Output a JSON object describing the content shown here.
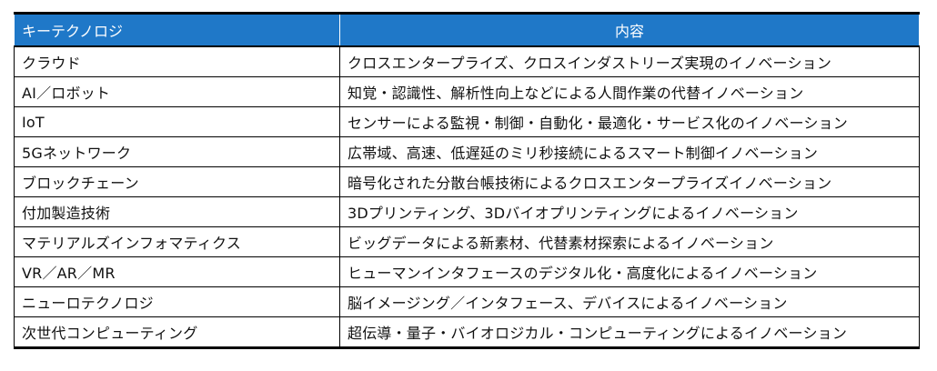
{
  "table": {
    "headers": [
      "キーテクノロジ",
      "内容"
    ],
    "rows": [
      [
        "クラウド",
        "クロスエンタープライズ、クロスインダストリーズ実現のイノベーション"
      ],
      [
        "AI／ロボット",
        "知覚・認識性、解析性向上などによる人間作業の代替イノベーション"
      ],
      [
        "IoT",
        "センサーによる監視・制御・自動化・最適化・サービス化のイノベーション"
      ],
      [
        "5Gネットワーク",
        "広帯域、高速、低遅延のミリ秒接続によるスマート制御イノベーション"
      ],
      [
        "ブロックチェーン",
        "暗号化された分散台帳技術によるクロスエンタープライズイノベーション"
      ],
      [
        "付加製造技術",
        "3Dプリンティング、3Dバイオプリンティングによるイノベーション"
      ],
      [
        "マテリアルズインフォマティクス",
        "ビッグデータによる新素材、代替素材探索によるイノベーション"
      ],
      [
        "VR／AR／MR",
        "ヒューマンインタフェースのデジタル化・高度化によるイノベーション"
      ],
      [
        "ニューロテクノロジ",
        "脳イメージング／インタフェース、デバイスによるイノベーション"
      ],
      [
        "次世代コンピューティング",
        "超伝導・量子・バイオロジカル・コンピューティングによるイノベーション"
      ]
    ]
  },
  "colors": {
    "header_bg": "#1f78c8",
    "header_text": "#ffffff",
    "border": "#000000"
  }
}
